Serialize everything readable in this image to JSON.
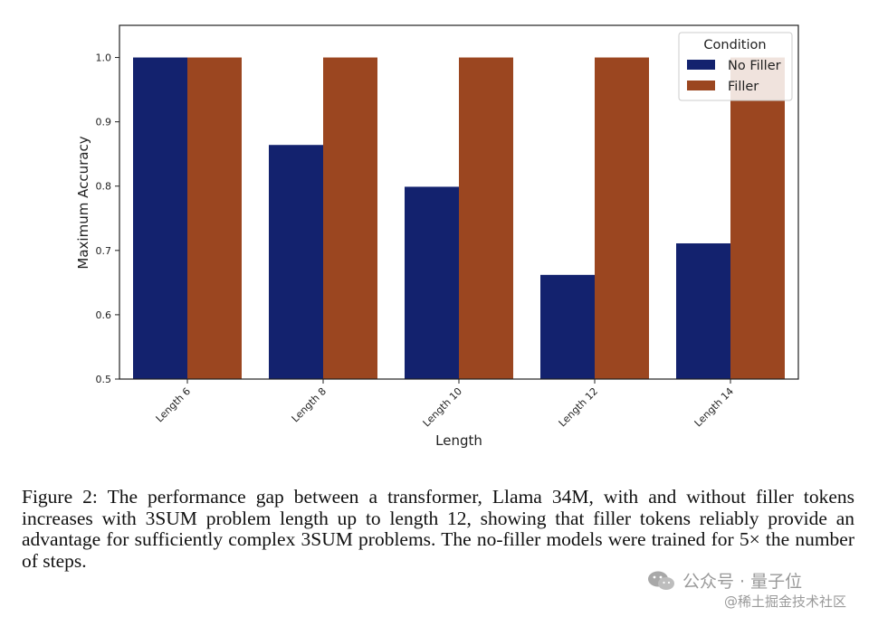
{
  "chart_data": {
    "type": "bar",
    "categories": [
      "Length 6",
      "Length 8",
      "Length 10",
      "Length 12",
      "Length 14"
    ],
    "series": [
      {
        "name": "No Filler",
        "values": [
          1.0,
          0.864,
          0.799,
          0.662,
          0.711
        ],
        "color": "#13226e"
      },
      {
        "name": "Filler",
        "values": [
          1.0,
          1.0,
          1.0,
          1.0,
          1.0
        ],
        "color": "#9b4620"
      }
    ],
    "xlabel": "Length",
    "ylabel": "Maximum Accuracy",
    "ylim": [
      0.5,
      1.05
    ],
    "yticks": [
      "0.5",
      "0.6",
      "0.7",
      "0.8",
      "0.9",
      "1.0"
    ],
    "legend": {
      "title": "Condition",
      "placement": "top-right"
    },
    "grid": false
  },
  "caption": "Figure 2: The performance gap between a transformer, Llama 34M, with and without filler tokens increases with 3SUM problem length up to length 12, showing that filler tokens reliably provide an advantage for sufficiently complex 3SUM problems. The no-filler models were trained for 5× the number of steps.",
  "watermark": {
    "icon": "wechat-icon",
    "account": "公众号 · 量子位",
    "site": "@稀土掘金技术社区"
  }
}
